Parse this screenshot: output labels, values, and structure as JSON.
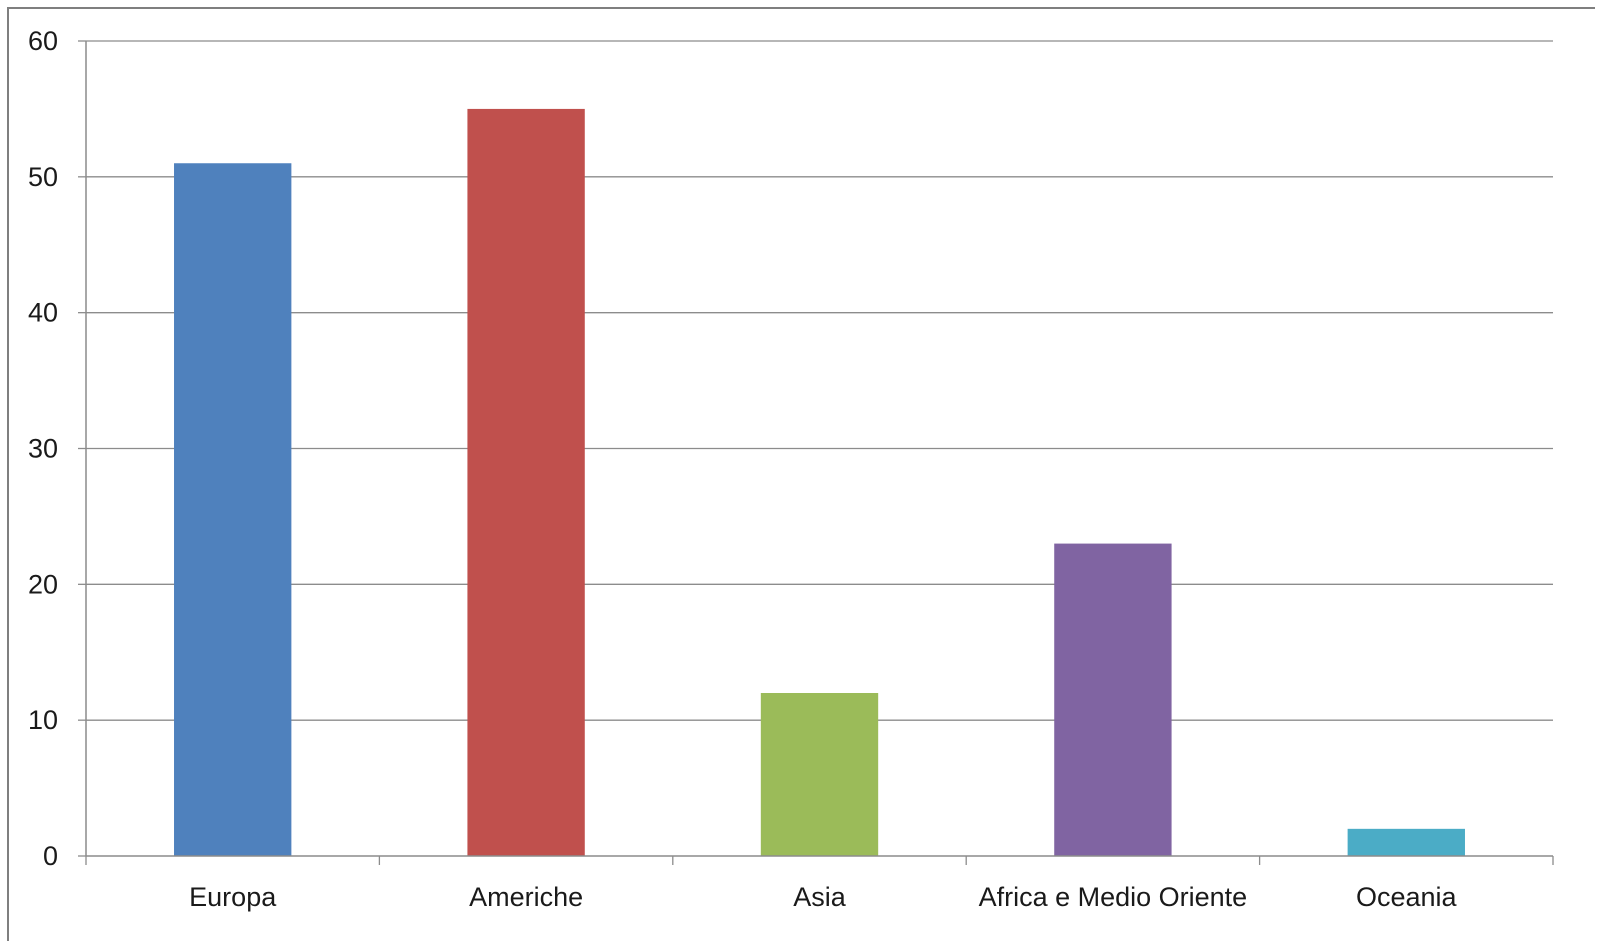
{
  "chart_data": {
    "type": "bar",
    "categories": [
      "Europa",
      "Americhe",
      "Asia",
      "Africa e Medio Oriente",
      "Oceania"
    ],
    "values": [
      51,
      55,
      12,
      23,
      2
    ],
    "bar_colors": [
      "#4F81BD",
      "#C0504D",
      "#9BBB59",
      "#8064A2",
      "#4BACC6"
    ],
    "ylim": [
      0,
      60
    ],
    "yticks": [
      0,
      10,
      20,
      30,
      40,
      50,
      60
    ],
    "grid": true,
    "gridline_color": "#8c8c8c",
    "axis_color": "#8c8c8c"
  }
}
